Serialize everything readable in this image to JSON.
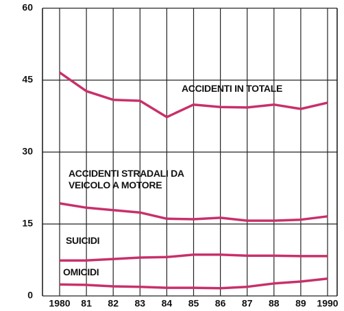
{
  "chart_data": {
    "type": "line",
    "categories": [
      "1980",
      "81",
      "82",
      "83",
      "84",
      "85",
      "86",
      "87",
      "88",
      "89",
      "1990"
    ],
    "series": [
      {
        "name": "ACCIDENTI IN TOTALE",
        "color": "#c8306a",
        "values": [
          46.6,
          42.7,
          40.9,
          40.7,
          37.3,
          39.9,
          39.4,
          39.3,
          39.9,
          39.0,
          40.3
        ]
      },
      {
        "name": "ACCIDENTI STRADALI DA VEICOLO A MOTORE",
        "color": "#c8306a",
        "values": [
          19.3,
          18.4,
          17.9,
          17.4,
          16.1,
          16.0,
          16.3,
          15.7,
          15.7,
          15.9,
          16.6
        ]
      },
      {
        "name": "SUICIDI",
        "color": "#c8306a",
        "values": [
          7.4,
          7.4,
          7.7,
          8.0,
          8.1,
          8.6,
          8.6,
          8.4,
          8.4,
          8.3,
          8.3
        ]
      },
      {
        "name": "OMICIDI",
        "color": "#c8306a",
        "values": [
          2.4,
          2.3,
          2.0,
          1.9,
          1.7,
          1.7,
          1.6,
          1.9,
          2.6,
          3.0,
          3.6
        ]
      }
    ],
    "ylim": [
      0,
      60
    ],
    "yticks": [
      0,
      15,
      30,
      45,
      60
    ],
    "grid": true
  }
}
